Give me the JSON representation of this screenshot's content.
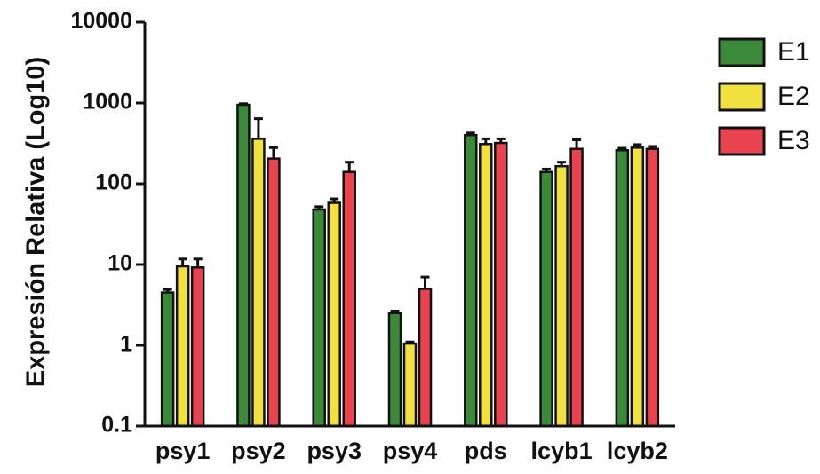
{
  "chart_data": {
    "type": "bar",
    "title": "",
    "xlabel": "",
    "ylabel": "Expresión Relativa (Log10)",
    "y_scale": "log10",
    "ylim": [
      0.1,
      10000
    ],
    "yticks": [
      0.1,
      1,
      10,
      100,
      1000,
      10000
    ],
    "ytick_labels": [
      "0.1",
      "1",
      "10",
      "100",
      "1000",
      "10000"
    ],
    "grid": false,
    "legend_position": "top-right",
    "categories": [
      "psy1",
      "psy2",
      "psy3",
      "psy4",
      "pds",
      "lcyb1",
      "lcyb2"
    ],
    "series": [
      {
        "name": "E1",
        "color": "#3a8a3a",
        "values": [
          4.5,
          950,
          48,
          2.5,
          400,
          140,
          260
        ],
        "errors": [
          0.4,
          30,
          4,
          0.15,
          25,
          12,
          15
        ]
      },
      {
        "name": "E2",
        "color": "#f0e040",
        "values": [
          9.5,
          360,
          58,
          1.05,
          310,
          165,
          280
        ],
        "errors": [
          2.2,
          280,
          7,
          0.05,
          50,
          20,
          25
        ]
      },
      {
        "name": "E3",
        "color": "#e8434f",
        "values": [
          9.2,
          205,
          140,
          5.0,
          320,
          270,
          270
        ],
        "errors": [
          2.5,
          75,
          45,
          2.0,
          40,
          80,
          20
        ]
      }
    ]
  }
}
